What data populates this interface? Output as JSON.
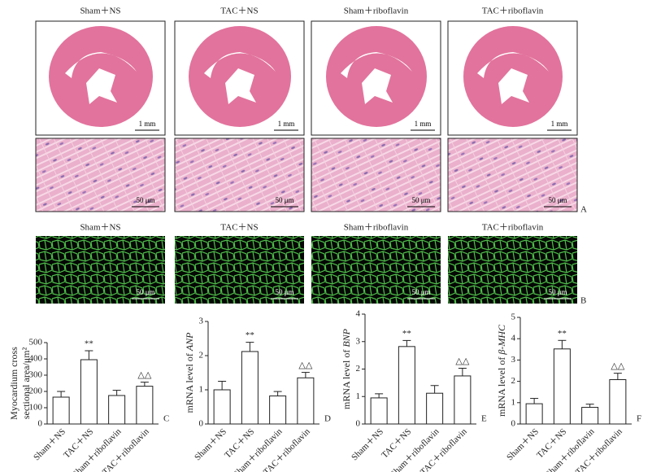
{
  "figure": {
    "panel_a": {
      "labels": [
        "Sham＋NS",
        "TAC＋NS",
        "Sham＋riboflavin",
        "TAC＋riboflavin"
      ],
      "heart_scale": "1 mm",
      "tissue_scale": "50 μm",
      "letter": "A"
    },
    "panel_b": {
      "labels": [
        "Sham＋NS",
        "TAC＋NS",
        "Sham＋riboflavin",
        "TAC＋riboflavin"
      ],
      "scale": "50 μm",
      "letter": "B"
    }
  },
  "chart_data": [
    {
      "type": "bar",
      "ylabel": [
        "Myocardium cross",
        "sectional area/μm²"
      ],
      "ylabel_style": "lines",
      "categories": [
        "Sham＋NS",
        "TAC＋NS",
        "Sham＋riboflavin",
        "TAC＋riboflavin"
      ],
      "values": [
        165,
        395,
        175,
        232
      ],
      "errors": [
        35,
        55,
        32,
        25
      ],
      "annotations": [
        null,
        "**",
        null,
        "△△"
      ],
      "ylim": [
        0,
        500
      ],
      "yticks": [
        0,
        100,
        200,
        300,
        400,
        500
      ],
      "color": "#ffffff",
      "letter": "C"
    },
    {
      "type": "bar",
      "ylabel": [
        "mRNA level of ",
        "ANP"
      ],
      "ylabel_style": "italic-last",
      "categories": [
        "Sham＋NS",
        "TAC＋NS",
        "Sham＋riboflavin",
        "TAC＋riboflavin"
      ],
      "values": [
        1.0,
        2.12,
        0.82,
        1.35
      ],
      "errors": [
        0.25,
        0.27,
        0.13,
        0.16
      ],
      "annotations": [
        null,
        "**",
        null,
        "△△"
      ],
      "ylim": [
        0,
        3
      ],
      "yticks": [
        0,
        1,
        2,
        3
      ],
      "color": "#ffffff",
      "letter": "D"
    },
    {
      "type": "bar",
      "ylabel": [
        "mRNA level of ",
        "BNP"
      ],
      "ylabel_style": "italic-last",
      "categories": [
        "Sham＋NS",
        "TAC＋NS",
        "Sham＋riboflavin",
        "TAC＋riboflavin"
      ],
      "values": [
        0.95,
        2.82,
        1.12,
        1.75
      ],
      "errors": [
        0.15,
        0.22,
        0.28,
        0.28
      ],
      "annotations": [
        null,
        "**",
        null,
        "△△"
      ],
      "ylim": [
        0,
        4
      ],
      "yticks": [
        0,
        1,
        2,
        3,
        4
      ],
      "color": "#ffffff",
      "letter": "E"
    },
    {
      "type": "bar",
      "ylabel": [
        "mRNA level of ",
        "β-MHC"
      ],
      "ylabel_style": "italic-last",
      "categories": [
        "Sham＋NS",
        "TAC＋NS",
        "Sham＋riboflavin",
        "TAC＋riboflavin"
      ],
      "values": [
        0.95,
        3.52,
        0.78,
        2.08
      ],
      "errors": [
        0.25,
        0.4,
        0.15,
        0.3
      ],
      "annotations": [
        null,
        "**",
        null,
        "△△"
      ],
      "ylim": [
        0,
        5
      ],
      "yticks": [
        0,
        1,
        2,
        3,
        4,
        5
      ],
      "color": "#ffffff",
      "letter": "F"
    }
  ]
}
